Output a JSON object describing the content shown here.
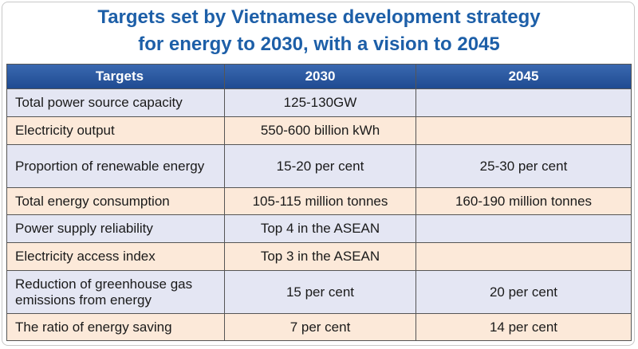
{
  "header": {
    "title": [
      "Targets set by Vietnamese development strategy",
      "for energy to 2030, with a vision to 2045"
    ]
  },
  "table": {
    "columns": [
      "Targets",
      "2030",
      "2045"
    ],
    "rows": [
      [
        "Total power source capacity",
        "125-130GW",
        null
      ],
      [
        "Electricity output",
        "550-600 billion kWh",
        null
      ],
      [
        "Proportion of renewable energy",
        "15-20 per cent",
        "25-30 per cent"
      ],
      [
        "Total energy consumption",
        "105-115 million tonnes",
        "160-190 million tonnes"
      ],
      [
        "Power supply reliability",
        "Top 4 in the ASEAN",
        null
      ],
      [
        "Electricity access index",
        "Top 3 in the ASEAN",
        null
      ],
      [
        "Reduction of greenhouse gas emissions from energy",
        "15 per cent",
        "20 per cent"
      ],
      [
        "The ratio of energy saving",
        "7 per cent",
        "14 per cent"
      ]
    ]
  }
}
